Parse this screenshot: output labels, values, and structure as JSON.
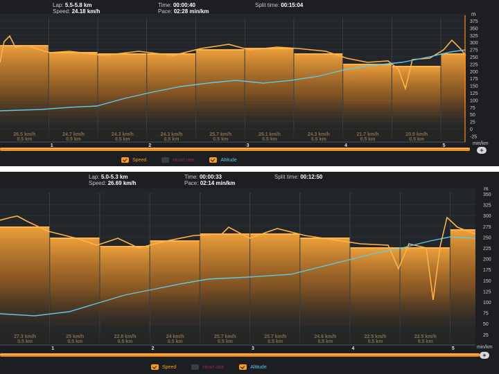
{
  "colors": {
    "speed": "#f39a2a",
    "heart_rate": "#b0306a",
    "altitude": "#5fc8e8",
    "bg": "#1c1e22"
  },
  "panels": [
    {
      "header": {
        "lap_label": "Lap:",
        "lap_value": "5.5-5.8 km",
        "speed_label": "Speed:",
        "speed_value": "24.18 km/h",
        "time_label": "Time:",
        "time_value": "00:00:40",
        "pace_label": "Pace:",
        "pace_value": "02:28 min/km",
        "split_label": "Split time:",
        "split_value": "00:15:04"
      },
      "unit_top": "m",
      "unit_bottom": "min/km",
      "y_ticks": [
        "375",
        "350",
        "325",
        "300",
        "275",
        "250",
        "225",
        "200",
        "175",
        "150",
        "125",
        "100",
        "75",
        "50",
        "25",
        "0",
        "-25"
      ],
      "km_markers": [
        "1",
        "2",
        "3",
        "4",
        "5"
      ],
      "segments": [
        {
          "speed": "26.5 km/h",
          "dist": "0.5 km"
        },
        {
          "speed": "24.7 km/h",
          "dist": "0.5 km"
        },
        {
          "speed": "24.3 km/h",
          "dist": "0.5 km"
        },
        {
          "speed": "24.3 km/h",
          "dist": "0.5 km"
        },
        {
          "speed": "25.7 km/h",
          "dist": "0.5 km"
        },
        {
          "speed": "26.1 km/h",
          "dist": "0.5 km"
        },
        {
          "speed": "24.3 km/h",
          "dist": "0.5 km"
        },
        {
          "speed": "21.7 km/h",
          "dist": "0.5 km"
        },
        {
          "speed": "20.9 km/h",
          "dist": "0.5 km"
        }
      ],
      "legend": {
        "speed": "Speed",
        "heart_rate": "Heart rate",
        "altitude": "Altitude"
      }
    },
    {
      "header": {
        "lap_label": "Lap:",
        "lap_value": "5.0-5.3 km",
        "speed_label": "Speed:",
        "speed_value": "26.69 km/h",
        "time_label": "Time:",
        "time_value": "00:00:33",
        "pace_label": "Pace:",
        "pace_value": "02:14 min/km",
        "split_label": "Split time:",
        "split_value": "00:12:50"
      },
      "unit_top": "m",
      "unit_bottom": "min/km",
      "y_ticks": [
        "350",
        "325",
        "300",
        "275",
        "250",
        "225",
        "200",
        "175",
        "150",
        "125",
        "100",
        "75",
        "50",
        "25"
      ],
      "km_markers": [
        "1",
        "2",
        "3",
        "4",
        "5"
      ],
      "segments": [
        {
          "speed": "27.3 km/h",
          "dist": "0.5 km"
        },
        {
          "speed": "25 km/h",
          "dist": "0.5 km"
        },
        {
          "speed": "22.8 km/h",
          "dist": "0.5 km"
        },
        {
          "speed": "24 km/h",
          "dist": "0.5 km"
        },
        {
          "speed": "25.7 km/h",
          "dist": "0.5 km"
        },
        {
          "speed": "25.7 km/h",
          "dist": "0.5 km"
        },
        {
          "speed": "24.6 km/h",
          "dist": "0.5 km"
        },
        {
          "speed": "22.5 km/h",
          "dist": "0.5 km"
        },
        {
          "speed": "22.5 km/h",
          "dist": "0.5 km"
        }
      ],
      "legend": {
        "speed": "Speed",
        "heart_rate": "Heart rate",
        "altitude": "Altitude"
      }
    }
  ]
}
